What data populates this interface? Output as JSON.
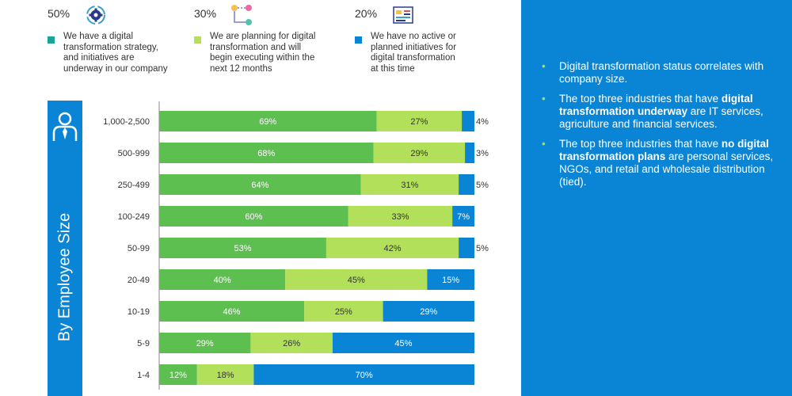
{
  "legend": [
    {
      "pct": "50%",
      "icon": "gear-cycle-icon",
      "color": "#1aa39a",
      "text": [
        "We have  a  digital",
        "transformation  strategy,",
        "and  initiatives  are",
        "underway in our company"
      ]
    },
    {
      "pct": "30%",
      "icon": "plan-flow-icon",
      "color": "#b3e05a",
      "text": [
        "We are planning for digital",
        "transformation and will",
        "begin executing within the",
        "next 12 months"
      ]
    },
    {
      "pct": "20%",
      "icon": "blueprint-icon",
      "color": "#0a85d6",
      "text": [
        "We  have  no  active  or",
        "planned initiatives for",
        "digital transformation",
        "at this time"
      ]
    }
  ],
  "side_label": "By Employee Size",
  "bullets": [
    [
      {
        "t": "Digital transformation status correlates with company size.",
        "b": false
      }
    ],
    [
      {
        "t": "The top three industries that have ",
        "b": false
      },
      {
        "t": "digital transformation underway",
        "b": true
      },
      {
        "t": " are IT services, agriculture and financial services.",
        "b": false
      }
    ],
    [
      {
        "t": "The top three industries that have ",
        "b": false
      },
      {
        "t": "no digital transformation plans",
        "b": true
      },
      {
        "t": " are personal services, NGOs, and retail and wholesale distribution (tied).",
        "b": false
      }
    ]
  ],
  "colors": {
    "underway": "#5cbf4f",
    "planning": "#b3e05a",
    "none": "#0a85d6",
    "panel": "#0a85d6"
  },
  "chart_data": {
    "type": "bar",
    "orientation": "horizontal",
    "stacked": true,
    "categories": [
      "1,000-2,500",
      "500-999",
      "250-499",
      "100-249",
      "50-99",
      "20-49",
      "10-19",
      "5-9",
      "1-4"
    ],
    "series": [
      {
        "values": [
          69,
          68,
          64,
          60,
          53,
          40,
          46,
          29,
          12
        ]
      },
      {
        "values": [
          27,
          29,
          31,
          33,
          42,
          45,
          25,
          26,
          18
        ]
      },
      {
        "values": [
          4,
          3,
          5,
          7,
          5,
          15,
          29,
          45,
          70
        ]
      }
    ],
    "xlim": [
      0,
      100
    ]
  }
}
